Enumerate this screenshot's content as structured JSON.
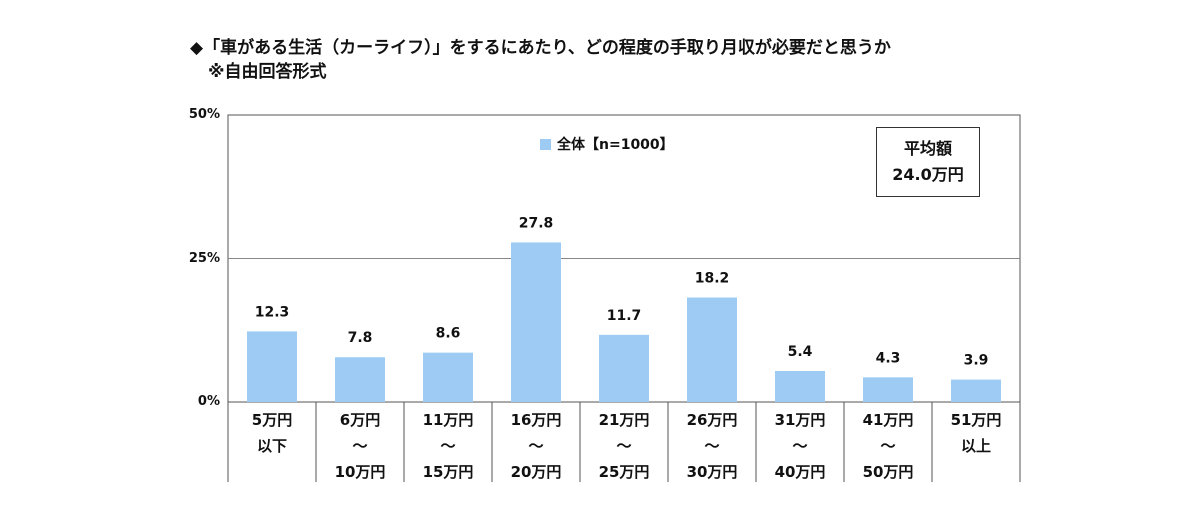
{
  "title": {
    "line1": "◆「車がある生活（カーライフ）」をするにあたり、どの程度の手取り月収が必要だと思うか",
    "line2": "※自由回答形式"
  },
  "avg_box": {
    "label": "平均額",
    "value": "24.0万円"
  },
  "chart_data": {
    "type": "bar",
    "categories": [
      "5万円\n以下",
      "6万円\n～\n10万円",
      "11万円\n～\n15万円",
      "16万円\n～\n20万円",
      "21万円\n～\n25万円",
      "26万円\n～\n30万円",
      "31万円\n～\n40万円",
      "41万円\n～\n50万円",
      "51万円\n以上"
    ],
    "series": [
      {
        "name": "全体【n=1000】",
        "values": [
          12.3,
          7.8,
          8.6,
          27.8,
          11.7,
          18.2,
          5.4,
          4.3,
          3.9
        ],
        "color": "#9dcbf4"
      }
    ],
    "data_labels": [
      "12.3",
      "7.8",
      "8.6",
      "27.8",
      "11.7",
      "18.2",
      "5.4",
      "4.3",
      "3.9"
    ],
    "ylim": [
      0,
      50
    ],
    "yticks": [
      0,
      25,
      50
    ],
    "ytick_labels": [
      "0%",
      "25%",
      "50%"
    ],
    "grid": true,
    "legend": "top-center"
  }
}
